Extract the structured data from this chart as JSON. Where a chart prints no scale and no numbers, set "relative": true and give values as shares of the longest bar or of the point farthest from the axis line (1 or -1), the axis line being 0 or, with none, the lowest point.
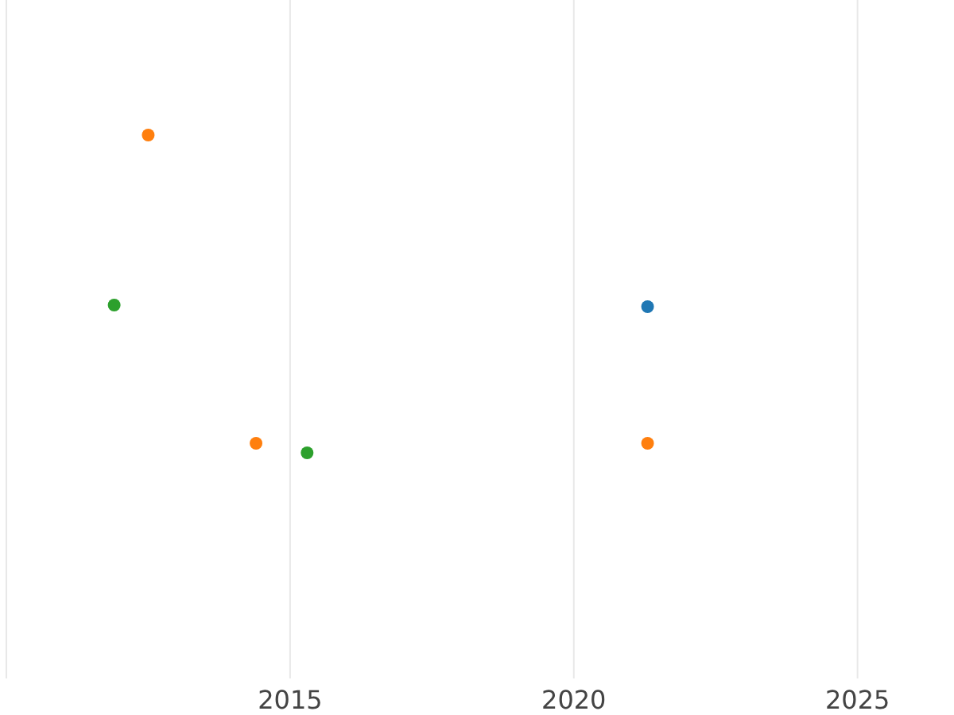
{
  "chart_data": {
    "type": "scatter",
    "relative": true,
    "xlim": [
      2010,
      2026.7
    ],
    "xticks": [
      2015,
      2020,
      2025
    ],
    "grid": "x",
    "marker": "circle",
    "series": [
      {
        "color": "#1f77b4",
        "x": [
          2021.3
        ],
        "values": [
          0.46
        ]
      },
      {
        "color": "#ff7f0e",
        "x": [
          2012.5,
          2014.4,
          2021.3
        ],
        "values": [
          1,
          0.03,
          0.03
        ]
      },
      {
        "color": "#2ca02c",
        "x": [
          2011.9,
          2015.3
        ],
        "values": [
          0.465,
          0
        ]
      }
    ]
  }
}
